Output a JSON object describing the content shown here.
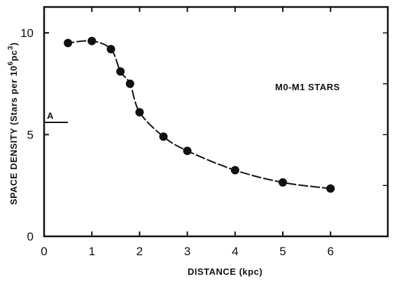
{
  "chart_data": {
    "type": "scatter",
    "title": "",
    "xlabel": "DISTANCE (kpc)",
    "ylabel": "SPACE DENSITY (Stars per 10",
    "ylabel_exp_6": "6",
    "ylabel_pc": "pc",
    "ylabel_exp_3": "3",
    "ylabel_close": ")",
    "xlim": [
      0,
      7
    ],
    "ylim": [
      0,
      10.6
    ],
    "x_ticks": [
      0,
      1,
      2,
      3,
      4,
      5,
      6
    ],
    "y_ticks": [
      0,
      5,
      10
    ],
    "x_tick_labels": [
      "0",
      "1",
      "2",
      "3",
      "4",
      "5",
      "6"
    ],
    "y_tick_labels": [
      "0",
      "5",
      "10"
    ],
    "grid": false,
    "legend": "none",
    "series": [
      {
        "x": [
          0.5,
          1.0,
          1.4,
          1.6,
          1.8,
          2.0,
          2.5,
          3.0,
          4.0,
          5.0,
          6.0
        ],
        "y": [
          9.5,
          9.6,
          9.2,
          8.1,
          7.5,
          6.1,
          4.9,
          4.2,
          3.25,
          2.65,
          2.35
        ],
        "fit_curve": true
      }
    ],
    "annotations": [
      {
        "text": "M0-M1 STARS",
        "x": 5.2,
        "y": 7.6
      },
      {
        "text": "A",
        "x": 0.1,
        "y": 5.75
      }
    ],
    "reference_mark": {
      "label": "A",
      "y": 5.6
    }
  }
}
